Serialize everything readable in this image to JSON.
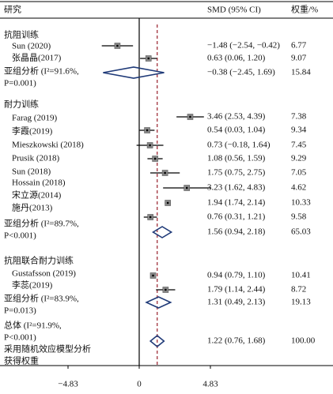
{
  "header": {
    "study": "研究",
    "smd": "SMD (95% CI)",
    "weight": "权重/%"
  },
  "chart_data": {
    "type": "forest",
    "xlim": [
      -4.83,
      4.83
    ],
    "xticks": [
      {
        "value": -4.83,
        "label": "−4.83"
      },
      0,
      4.83
    ],
    "reference_color": "#a0303a",
    "rows": [
      {
        "kind": "group",
        "label": [
          "抗阻训练"
        ]
      },
      {
        "kind": "study",
        "label": [
          "Sun (2020)"
        ],
        "est": -1.48,
        "lower": -2.54,
        "upper": -0.42,
        "ci_label": "−1.48 (−2.54, −0.42)",
        "weight": "6.77"
      },
      {
        "kind": "study",
        "label": [
          "张晶晶(2017)"
        ],
        "est": 0.63,
        "lower": 0.06,
        "upper": 1.2,
        "ci_label": "0.63 (0.06, 1.20)",
        "weight": "9.07"
      },
      {
        "kind": "subgroup",
        "label": [
          "亚组分析 (I²=91.6%,",
          "P=0.001)"
        ],
        "est": -0.38,
        "lower": -2.45,
        "upper": 1.69,
        "ci_label": "−0.38 (−2.45, 1.69)",
        "weight": "15.84"
      },
      {
        "kind": "group",
        "label": [
          "耐力训练"
        ]
      },
      {
        "kind": "study",
        "label": [
          "Farag (2019)"
        ],
        "est": 3.46,
        "lower": 2.53,
        "upper": 4.39,
        "ci_label": "3.46 (2.53, 4.39)",
        "weight": "7.38"
      },
      {
        "kind": "study",
        "label": [
          "李霞(2019)"
        ],
        "est": 0.54,
        "lower": 0.03,
        "upper": 1.04,
        "ci_label": "0.54 (0.03, 1.04)",
        "weight": "9.34"
      },
      {
        "kind": "study",
        "label": [
          "Mieszkowski (2018)"
        ],
        "est": 0.73,
        "lower": -0.18,
        "upper": 1.64,
        "ci_label": "0.73 (−0.18, 1.64)",
        "weight": "7.45"
      },
      {
        "kind": "study",
        "label": [
          "Prusik (2018)"
        ],
        "est": 1.08,
        "lower": 0.56,
        "upper": 1.59,
        "ci_label": "1.08 (0.56, 1.59)",
        "weight": "9.29"
      },
      {
        "kind": "study",
        "label": [
          "Sun (2018)"
        ],
        "est": 1.75,
        "lower": 0.75,
        "upper": 2.75,
        "ci_label": "1.75 (0.75, 2.75)",
        "weight": "7.05"
      },
      {
        "kind": "study",
        "label": [
          "Hossain (2018)"
        ],
        "est": 3.23,
        "lower": 1.62,
        "upper": 4.83,
        "ci_label": "3.23 (1.62, 4.83)",
        "weight": "4.62"
      },
      {
        "kind": "study",
        "label": [
          "宋立源(2014)"
        ],
        "est": 1.94,
        "lower": 1.74,
        "upper": 2.14,
        "ci_label": "1.94 (1.74, 2.14)",
        "weight": "10.33"
      },
      {
        "kind": "study",
        "label": [
          "施丹(2013)"
        ],
        "est": 0.76,
        "lower": 0.31,
        "upper": 1.21,
        "ci_label": "0.76 (0.31, 1.21)",
        "weight": "9.58"
      },
      {
        "kind": "subgroup",
        "label": [
          "亚组分析 (I²=89.7%,",
          "P<0.001)"
        ],
        "est": 1.56,
        "lower": 0.94,
        "upper": 2.18,
        "ci_label": "1.56 (0.94, 2.18)",
        "weight": "65.03"
      },
      {
        "kind": "group",
        "label": [
          "抗阻联合耐力训练"
        ]
      },
      {
        "kind": "study",
        "label": [
          "Gustafsson (2019)"
        ],
        "est": 0.94,
        "lower": 0.79,
        "upper": 1.1,
        "ci_label": "0.94 (0.79, 1.10)",
        "weight": "10.41"
      },
      {
        "kind": "study",
        "label": [
          "李蕊(2019)"
        ],
        "est": 1.79,
        "lower": 1.14,
        "upper": 2.44,
        "ci_label": "1.79 (1.14, 2.44)",
        "weight": "8.72"
      },
      {
        "kind": "subgroup",
        "label": [
          "亚组分析 (I²=83.9%,",
          "P=0.013)"
        ],
        "est": 1.31,
        "lower": 0.49,
        "upper": 2.13,
        "ci_label": "1.31 (0.49, 2.13)",
        "weight": "19.13"
      },
      {
        "kind": "overall",
        "label": [
          "总体 (I²=91.9%,",
          "P<0.001)",
          "采用随机效应模型分析",
          "获得权重"
        ],
        "est": 1.22,
        "lower": 0.76,
        "upper": 1.68,
        "ci_label": "1.22 (0.76, 1.68)",
        "weight": "100.00"
      }
    ]
  }
}
